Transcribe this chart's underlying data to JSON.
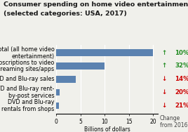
{
  "title_line1": "Consumer spending on home video entertainment",
  "title_line2": "(selected categories: USA, 2017)",
  "categories": [
    "DVD and Blu-ray\nrentals from shops",
    "DVD and Blu-ray rent-\nby-post services",
    "DVD and Blu-ray sales",
    "Subscriptions to video\nstreaming sites/apps",
    "Total (all home video\nentertainment)"
  ],
  "values": [
    0.5,
    0.6,
    4.0,
    10.0,
    20.0
  ],
  "bar_color": "#5b82b0",
  "xlabel": "Billions of dollars",
  "xlim": [
    0,
    21
  ],
  "xticks": [
    0,
    5,
    10,
    15,
    20
  ],
  "changes": [
    "↓ 21%",
    "↓ 20%",
    "↓ 14%",
    "↑ 32%",
    "↑ 10%"
  ],
  "change_colors": [
    "#cc0000",
    "#cc0000",
    "#cc0000",
    "#228B22",
    "#228B22"
  ],
  "change_label": "Change\nfrom 2016",
  "background_color": "#f0f0eb",
  "title_fontsize": 6.8,
  "label_fontsize": 5.8,
  "tick_fontsize": 5.5,
  "change_fontsize": 6.2
}
